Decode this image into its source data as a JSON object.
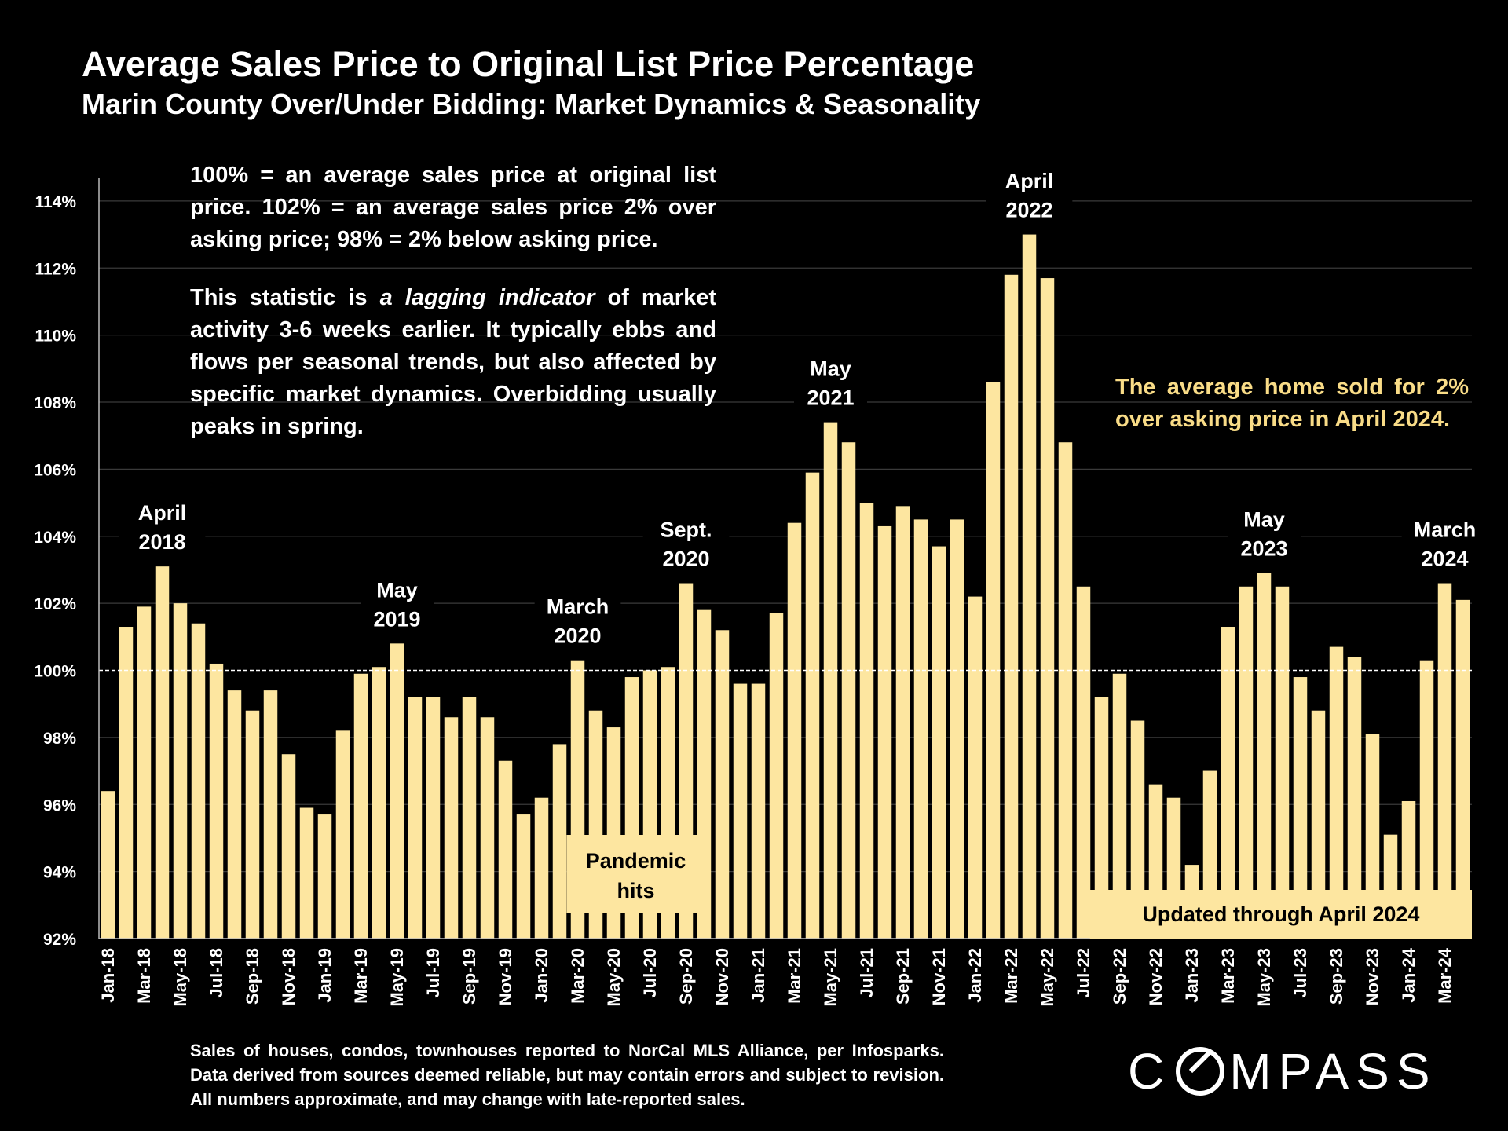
{
  "header": {
    "title": "Average Sales Price to Original List Price Percentage",
    "subtitle": "Marin County Over/Under Bidding: Market Dynamics & Seasonality"
  },
  "notes": {
    "definition": "100% = an average sales price at original list price. 102% = an average sales price 2% over asking price; 98% = 2% below asking price.",
    "lagging_prefix": "This statistic is ",
    "lagging_emphasis": "a lagging indicator",
    "lagging_suffix": " of market activity 3-6 weeks earlier. It typically ebbs and flows per seasonal trends, but also affected by specific market dynamics. Overbidding usually peaks in spring.",
    "highlight": "The average home sold for 2% over asking price in April 2024."
  },
  "footer": {
    "source": "Sales of houses, condos, townhouses reported to NorCal MLS Alliance, per Infosparks. Data derived from sources deemed reliable, but may contain errors and subject to revision. All numbers approximate, and may change with late-reported sales.",
    "logo": "COMPASS"
  },
  "colors": {
    "background": "#000000",
    "bar": "#fde6a0",
    "highlight_text": "#f9dc87",
    "grid": "#3a3a3a"
  },
  "chart_data": {
    "type": "bar",
    "title": "Average Sales Price to Original List Price Percentage",
    "ylabel": "",
    "xlabel": "",
    "ylim": [
      92,
      114.7
    ],
    "y_ticks": [
      "92%",
      "94%",
      "96%",
      "98%",
      "100%",
      "102%",
      "104%",
      "106%",
      "108%",
      "110%",
      "112%",
      "114%"
    ],
    "reference_line": 100,
    "categories": [
      "Jan-18",
      "Feb-18",
      "Mar-18",
      "Apr-18",
      "May-18",
      "Jun-18",
      "Jul-18",
      "Aug-18",
      "Sep-18",
      "Oct-18",
      "Nov-18",
      "Dec-18",
      "Jan-19",
      "Feb-19",
      "Mar-19",
      "Apr-19",
      "May-19",
      "Jun-19",
      "Jul-19",
      "Aug-19",
      "Sep-19",
      "Oct-19",
      "Nov-19",
      "Dec-19",
      "Jan-20",
      "Feb-20",
      "Mar-20",
      "Apr-20",
      "May-20",
      "Jun-20",
      "Jul-20",
      "Aug-20",
      "Sep-20",
      "Oct-20",
      "Nov-20",
      "Dec-20",
      "Jan-21",
      "Feb-21",
      "Mar-21",
      "Apr-21",
      "May-21",
      "Jun-21",
      "Jul-21",
      "Aug-21",
      "Sep-21",
      "Oct-21",
      "Nov-21",
      "Dec-21",
      "Jan-22",
      "Feb-22",
      "Mar-22",
      "Apr-22",
      "May-22",
      "Jun-22",
      "Jul-22",
      "Aug-22",
      "Sep-22",
      "Oct-22",
      "Nov-22",
      "Dec-22",
      "Jan-23",
      "Feb-23",
      "Mar-23",
      "Apr-23",
      "May-23",
      "Jun-23",
      "Jul-23",
      "Aug-23",
      "Sep-23",
      "Oct-23",
      "Nov-23",
      "Dec-23",
      "Jan-24",
      "Feb-24",
      "Mar-24",
      "Apr-24"
    ],
    "values": [
      96.4,
      101.3,
      101.9,
      103.1,
      102.0,
      101.4,
      100.2,
      99.4,
      98.8,
      99.4,
      97.5,
      95.9,
      95.7,
      98.2,
      99.9,
      100.1,
      100.8,
      99.2,
      99.2,
      98.6,
      99.2,
      98.6,
      97.3,
      95.7,
      96.2,
      97.8,
      100.3,
      98.8,
      98.3,
      99.8,
      100.0,
      100.1,
      102.6,
      101.8,
      101.2,
      99.6,
      99.6,
      101.7,
      104.4,
      105.9,
      107.4,
      106.8,
      105.0,
      104.3,
      104.9,
      104.5,
      103.7,
      104.5,
      102.2,
      108.6,
      111.8,
      113.0,
      111.7,
      106.8,
      102.5,
      99.2,
      99.9,
      98.5,
      96.6,
      96.2,
      94.2,
      97.0,
      101.3,
      102.5,
      102.9,
      102.5,
      99.8,
      98.8,
      100.7,
      100.4,
      98.1,
      95.1,
      96.1,
      100.3,
      102.6,
      102.1
    ],
    "x_tick_labels": [
      "Jan-18",
      "Mar-18",
      "May-18",
      "Jul-18",
      "Sep-18",
      "Nov-18",
      "Jan-19",
      "Mar-19",
      "May-19",
      "Jul-19",
      "Sep-19",
      "Nov-19",
      "Jan-20",
      "Mar-20",
      "May-20",
      "Jul-20",
      "Sep-20",
      "Nov-20",
      "Jan-21",
      "Mar-21",
      "May-21",
      "Jul-21",
      "Sep-21",
      "Nov-21",
      "Jan-22",
      "Mar-22",
      "May-22",
      "Jul-22",
      "Sep-22",
      "Nov-22",
      "Jan-23",
      "Mar-23",
      "May-23",
      "Jul-23",
      "Sep-23",
      "Nov-23",
      "Jan-24",
      "Mar-24"
    ],
    "annotations": [
      {
        "text": [
          "April",
          "2018"
        ],
        "month": "Apr-18"
      },
      {
        "text": [
          "May",
          "2019"
        ],
        "month": "May-19"
      },
      {
        "text": [
          "March",
          "2020"
        ],
        "month": "Mar-20"
      },
      {
        "text": [
          "Sept.",
          "2020"
        ],
        "month": "Sep-20"
      },
      {
        "text": [
          "May",
          "2021"
        ],
        "month": "May-21"
      },
      {
        "text": [
          "April",
          "2022"
        ],
        "month": "Apr-22"
      },
      {
        "text": [
          "May",
          "2023"
        ],
        "month": "May-23"
      },
      {
        "text": [
          "March",
          "2024"
        ],
        "month": "Mar-24"
      }
    ],
    "callouts": {
      "pandemic": [
        "Pandemic",
        "hits"
      ],
      "updated": "Updated through April 2024"
    }
  }
}
